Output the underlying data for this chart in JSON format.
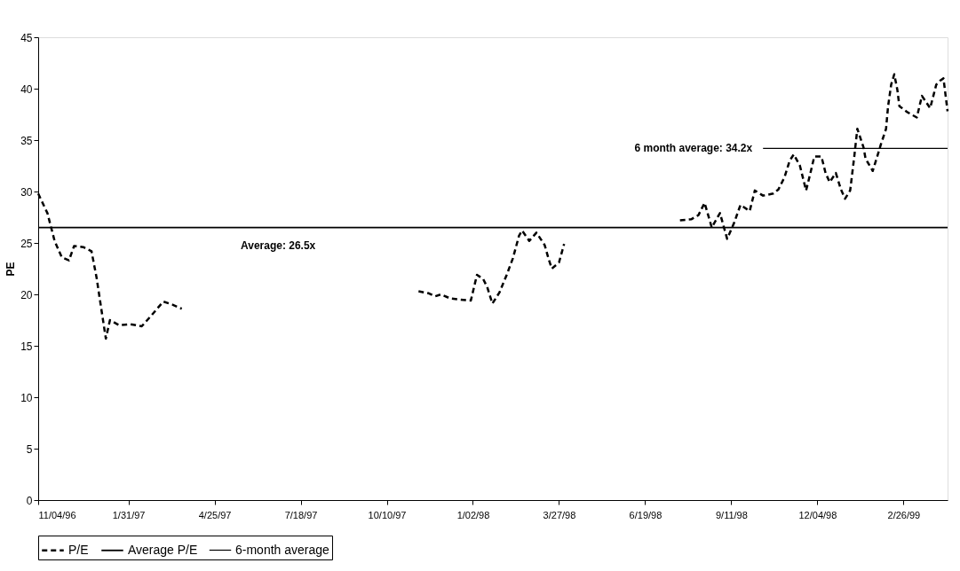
{
  "chart_data": {
    "type": "line",
    "ylabel": "PE",
    "ylim": [
      0,
      45
    ],
    "yticks": [
      0,
      5,
      10,
      15,
      20,
      25,
      30,
      35,
      40,
      45
    ],
    "xlim": [
      "1996-11-04",
      "1999-04-10"
    ],
    "xticks": [
      {
        "value": "1996-11-04",
        "label": "11/04/96"
      },
      {
        "value": "1997-01-31",
        "label": "1/31/97"
      },
      {
        "value": "1997-04-25",
        "label": "4/25/97"
      },
      {
        "value": "1997-07-18",
        "label": "7/18/97"
      },
      {
        "value": "1997-10-10",
        "label": "10/10/97"
      },
      {
        "value": "1998-01-02",
        "label": "1/02/98"
      },
      {
        "value": "1998-03-27",
        "label": "3/27/98"
      },
      {
        "value": "1998-06-19",
        "label": "6/19/98"
      },
      {
        "value": "1998-09-11",
        "label": "9/11/98"
      },
      {
        "value": "1998-12-04",
        "label": "12/04/98"
      },
      {
        "value": "1999-02-26",
        "label": "2/26/99"
      }
    ],
    "grid": false,
    "legend": "bottom",
    "marker": "none",
    "series": [
      {
        "name": "P/E",
        "color": "#000000",
        "line_style": "dashed",
        "x": [
          "1996-11-04",
          "1996-11-13",
          "1996-11-20",
          "1996-11-27",
          "1996-12-04",
          "1996-12-09",
          "1996-12-18",
          "1996-12-26",
          "1996-12-31",
          "1997-01-05",
          "1997-01-09",
          "1997-01-13",
          "1997-01-22",
          "1997-02-02",
          "1997-02-13",
          "1997-02-22",
          "1997-03-06",
          "1997-03-15",
          "1997-03-24",
          "1997-07-01",
          "1997-11-10",
          "1997-11-20",
          "1997-11-26",
          "1997-12-02",
          "1997-12-11",
          "1997-12-20",
          "1997-12-31",
          "1998-01-06",
          "1998-01-12",
          "1998-01-16",
          "1998-01-21",
          "1998-01-28",
          "1998-02-04",
          "1998-02-10",
          "1998-02-16",
          "1998-02-19",
          "1998-02-26",
          "1998-03-05",
          "1998-03-13",
          "1998-03-17",
          "1998-03-20",
          "1998-03-27",
          "1998-04-01",
          "1998-05-15",
          "1998-07-23",
          "1998-08-03",
          "1998-08-10",
          "1998-08-16",
          "1998-08-23",
          "1998-08-31",
          "1998-09-07",
          "1998-09-14",
          "1998-09-20",
          "1998-09-29",
          "1998-10-04",
          "1998-10-12",
          "1998-10-22",
          "1998-10-27",
          "1998-11-02",
          "1998-11-07",
          "1998-11-11",
          "1998-11-17",
          "1998-11-23",
          "1998-11-27",
          "1998-12-01",
          "1998-12-08",
          "1998-12-12",
          "1998-12-16",
          "1998-12-22",
          "1998-12-27",
          "1998-12-31",
          "1999-01-05",
          "1999-01-09",
          "1999-01-12",
          "1999-01-18",
          "1999-01-20",
          "1999-01-27",
          "1999-02-01",
          "1999-02-04",
          "1999-02-09",
          "1999-02-11",
          "1999-02-14",
          "1999-02-17",
          "1999-02-20",
          "1999-02-22",
          "1999-03-02",
          "1999-03-11",
          "1999-03-16",
          "1999-03-24",
          "1999-03-30",
          "1999-04-03",
          "1999-04-06",
          "1999-04-10"
        ],
        "values": [
          29.8,
          27.9,
          25.2,
          23.6,
          23.3,
          24.7,
          24.6,
          24.2,
          21.6,
          18.3,
          15.7,
          17.5,
          17.0,
          17.1,
          16.9,
          17.9,
          19.3,
          19.0,
          18.6,
          null,
          20.3,
          20.1,
          19.8,
          20.0,
          19.6,
          19.5,
          19.4,
          21.9,
          21.5,
          20.7,
          19.1,
          20.2,
          21.9,
          23.5,
          25.7,
          26.2,
          25.2,
          26.0,
          24.8,
          23.4,
          22.5,
          23.1,
          24.9,
          null,
          27.2,
          27.3,
          27.7,
          28.9,
          26.5,
          27.9,
          25.4,
          27.0,
          28.7,
          28.1,
          30.1,
          29.6,
          29.8,
          30.2,
          31.4,
          33.0,
          33.6,
          32.5,
          30.1,
          31.7,
          33.4,
          33.4,
          31.8,
          30.9,
          31.8,
          30.2,
          29.3,
          30.1,
          33.4,
          36.1,
          34.3,
          33.2,
          32.0,
          33.6,
          34.6,
          36.1,
          38.3,
          40.4,
          41.4,
          39.9,
          38.3,
          37.7,
          37.2,
          39.3,
          38.1,
          40.4,
          40.8,
          41.0,
          37.8
        ]
      },
      {
        "name": "Average P/E",
        "color": "#000000",
        "line_style": "solid",
        "x": [
          "1996-11-04",
          "1999-04-10"
        ],
        "values": [
          26.5,
          26.5
        ]
      },
      {
        "name": "6-month average",
        "color": "#000000",
        "line_style": "solid",
        "x": [
          "1998-10-12",
          "1999-04-10"
        ],
        "values": [
          34.2,
          34.2
        ]
      }
    ],
    "annotations": [
      {
        "text": "Average: 26.5x",
        "x": "1997-06-26",
        "y": 26.5
      },
      {
        "text": "6 month average: 34.2x",
        "x": "1998-10-12",
        "y": 34.2
      }
    ]
  }
}
